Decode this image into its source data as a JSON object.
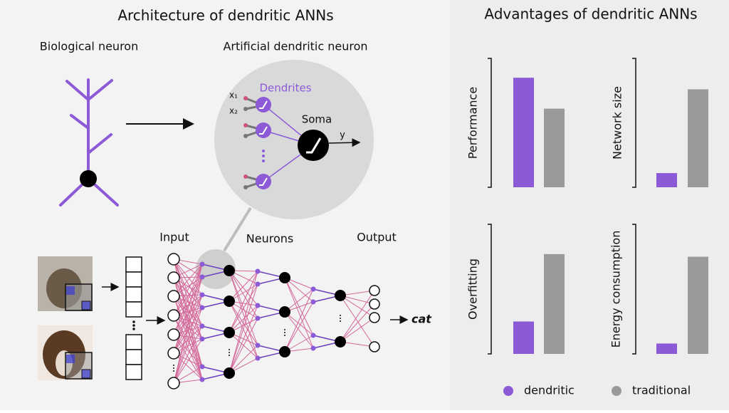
{
  "diagram": {
    "title": "Architecture of dendritic ANNs",
    "biological_label": "Biological neuron",
    "artificial_label": "Artificial dendritic neuron",
    "dendrites_label": "Dendrites",
    "soma_label": "Soma",
    "input_x1": "x₁",
    "input_x2": "x₂",
    "output_y": "y",
    "input_label": "Input",
    "neurons_label": "Neurons",
    "output_label": "Output",
    "prediction": "cat"
  },
  "advantages_title": "Advantages of dendritic ANNs",
  "legend": {
    "series": [
      {
        "name": "dendritic",
        "color": "#8c5ad6"
      },
      {
        "name": "traditional",
        "color": "#9a9a9a"
      }
    ]
  },
  "chart_data": [
    {
      "type": "bar",
      "ylabel": "Performance",
      "categories": [
        null
      ],
      "ylim": [
        0,
        100
      ],
      "series": [
        {
          "values": [
            85
          ]
        },
        {
          "values": [
            61
          ]
        }
      ]
    },
    {
      "type": "bar",
      "ylabel": "Network size",
      "categories": [
        null
      ],
      "ylim": [
        0,
        100
      ],
      "series": [
        {
          "values": [
            11
          ]
        },
        {
          "values": [
            76
          ]
        }
      ]
    },
    {
      "type": "bar",
      "ylabel": "Overfitting",
      "categories": [
        null
      ],
      "ylim": [
        0,
        100
      ],
      "series": [
        {
          "values": [
            25
          ]
        },
        {
          "values": [
            77
          ]
        }
      ]
    },
    {
      "type": "bar",
      "ylabel": "Energy consumption",
      "categories": [
        null
      ],
      "ylim": [
        0,
        100
      ],
      "series": [
        {
          "values": [
            8
          ]
        },
        {
          "values": [
            75
          ]
        }
      ]
    }
  ]
}
